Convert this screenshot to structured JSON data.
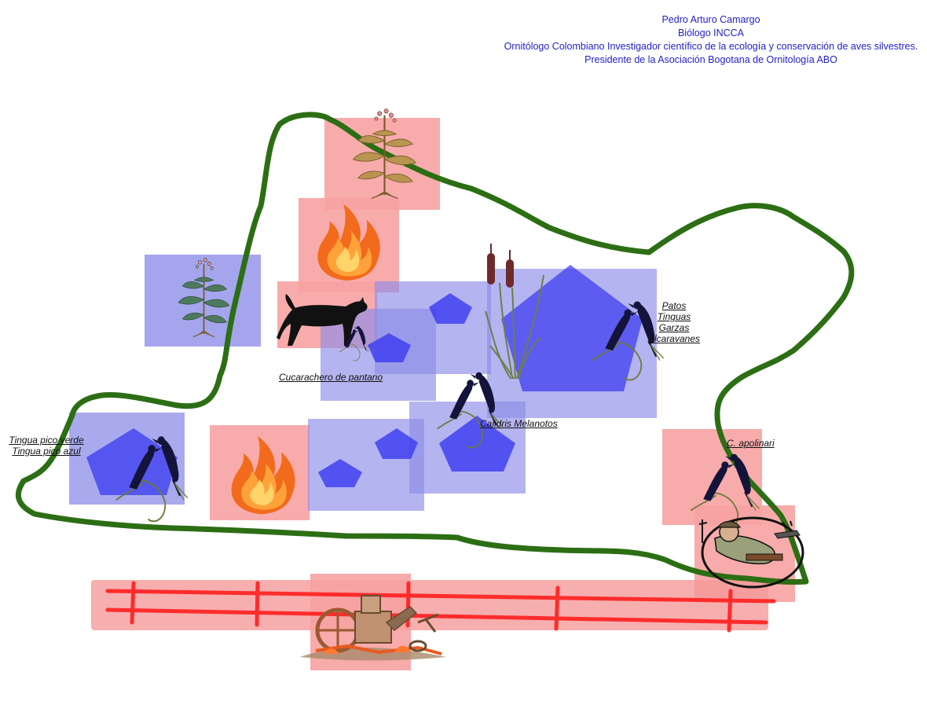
{
  "header": {
    "line1": "Pedro Arturo Camargo",
    "line2": "Biólogo INCCA",
    "line3": "Ornitólogo Colombiano Investigador científico de la ecología y conservación de aves silvestres.",
    "line4": "Presidente de la Asociación Bogotana de Ornitología ABO"
  },
  "labels": {
    "patos": "Patos",
    "tinguas": "Tinguas",
    "garzas": "Garzas",
    "alcaravanes": "Alcaravanes",
    "cucarachero": "Cucarachero de pantano",
    "calidris": "Calidris Melanotos",
    "tingua_verde": "Tingua pico verde",
    "tingua_azul": "Tingua pico azul",
    "apolinari": "C. apolinari"
  },
  "colors": {
    "boundary": "#2c6e14",
    "threat_zone": "#f7a2a2",
    "habitat_zone": "#9a9aec",
    "pentagon": "#3a3af0",
    "fence": "#ff1f1f",
    "credit_text": "#1f1fc8"
  },
  "icons": [
    "tobacco-plant-icon",
    "fire-icon",
    "dog-icon",
    "bird-pair-icon",
    "cattail-reed-icon",
    "hunter-icon",
    "debris-pile-icon",
    "fence-icon"
  ]
}
